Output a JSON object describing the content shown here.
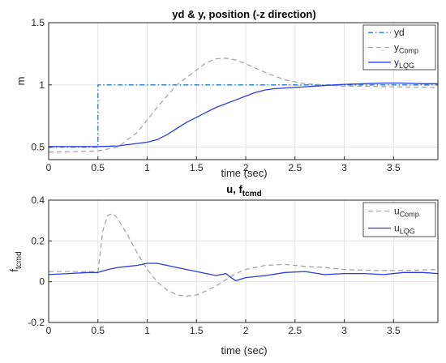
{
  "chart_data": [
    {
      "type": "line",
      "title": "yd & y, position (-z direction)",
      "xlabel": "time (sec)",
      "ylabel": "m",
      "xlim": [
        0,
        3.95
      ],
      "ylim": [
        0.4,
        1.5
      ],
      "xticks": [
        0,
        0.5,
        1,
        1.5,
        2,
        2.5,
        3,
        3.5
      ],
      "xtick_labels": [
        "0",
        "0.5",
        "1",
        "1.5",
        "2",
        "2.5",
        "3",
        "3.5"
      ],
      "yticks": [
        0.5,
        1,
        1.5
      ],
      "ytick_labels": [
        "0.5",
        "1",
        "1.5"
      ],
      "grid": true,
      "legend_position": "top-right",
      "series": [
        {
          "name": "yd",
          "legend_main": "yd",
          "legend_sub": "",
          "color": "#1f77d0",
          "style": "dashdot",
          "x": [
            0,
            0.5,
            0.5,
            3.95
          ],
          "y": [
            0.5,
            0.5,
            1.0,
            1.0
          ]
        },
        {
          "name": "yComp",
          "legend_main": "y",
          "legend_sub": "Comp",
          "color": "#a6a6a6",
          "style": "dashed",
          "x": [
            0,
            0.3,
            0.5,
            0.7,
            0.9,
            1.1,
            1.3,
            1.5,
            1.6,
            1.7,
            1.8,
            1.9,
            2.0,
            2.2,
            2.4,
            2.6,
            2.8,
            3.0,
            3.2,
            3.5,
            3.95
          ],
          "y": [
            0.46,
            0.465,
            0.47,
            0.5,
            0.62,
            0.82,
            1.0,
            1.12,
            1.18,
            1.21,
            1.215,
            1.2,
            1.17,
            1.1,
            1.04,
            1.01,
            1.0,
            0.99,
            0.99,
            0.985,
            0.98
          ]
        },
        {
          "name": "yLQG",
          "legend_main": "y",
          "legend_sub": "LQG",
          "color": "#2b3be0",
          "style": "solid",
          "x": [
            0,
            0.3,
            0.5,
            0.7,
            0.9,
            1.0,
            1.1,
            1.2,
            1.3,
            1.4,
            1.5,
            1.6,
            1.7,
            1.8,
            1.9,
            2.0,
            2.1,
            2.2,
            2.3,
            2.5,
            2.7,
            2.9,
            3.0,
            3.2,
            3.4,
            3.6,
            3.8,
            3.95
          ],
          "y": [
            0.505,
            0.505,
            0.505,
            0.51,
            0.53,
            0.54,
            0.56,
            0.6,
            0.65,
            0.7,
            0.74,
            0.78,
            0.82,
            0.85,
            0.88,
            0.91,
            0.94,
            0.96,
            0.97,
            0.98,
            0.99,
            1.0,
            1.005,
            1.01,
            1.015,
            1.015,
            1.01,
            1.01
          ]
        }
      ]
    },
    {
      "type": "line",
      "title_main": "u, f",
      "title_sub": "tcmd",
      "xlabel": "time (sec)",
      "ylabel_main": "f",
      "ylabel_sub": "tcmd",
      "xlim": [
        0,
        3.95
      ],
      "ylim": [
        -0.2,
        0.4
      ],
      "xticks": [
        0,
        0.5,
        1,
        1.5,
        2,
        2.5,
        3,
        3.5
      ],
      "xtick_labels": [
        "0",
        "0.5",
        "1",
        "1.5",
        "2",
        "2.5",
        "3",
        "3.5"
      ],
      "yticks": [
        -0.2,
        0,
        0.2,
        0.4
      ],
      "ytick_labels": [
        "-0.2",
        "0",
        "0.2",
        "0.4"
      ],
      "grid": true,
      "legend_position": "top-right",
      "series": [
        {
          "name": "uComp",
          "legend_main": "u",
          "legend_sub": "Comp",
          "color": "#a6a6a6",
          "style": "dashed",
          "x": [
            0,
            0.25,
            0.5,
            0.55,
            0.6,
            0.65,
            0.7,
            0.8,
            0.9,
            1.0,
            1.1,
            1.2,
            1.3,
            1.4,
            1.5,
            1.6,
            1.7,
            1.8,
            1.9,
            2.0,
            2.2,
            2.4,
            2.6,
            2.8,
            3.0,
            3.3,
            3.6,
            3.95
          ],
          "y": [
            0.05,
            0.05,
            0.05,
            0.25,
            0.325,
            0.335,
            0.31,
            0.23,
            0.14,
            0.06,
            0.0,
            -0.04,
            -0.065,
            -0.07,
            -0.065,
            -0.045,
            -0.02,
            0.01,
            0.04,
            0.06,
            0.08,
            0.085,
            0.075,
            0.07,
            0.06,
            0.055,
            0.055,
            0.06
          ]
        },
        {
          "name": "uLQG",
          "legend_main": "u",
          "legend_sub": "LQG",
          "color": "#2b3be0",
          "style": "solid",
          "x": [
            0,
            0.2,
            0.4,
            0.5,
            0.6,
            0.7,
            0.8,
            0.9,
            1.0,
            1.1,
            1.2,
            1.3,
            1.4,
            1.5,
            1.6,
            1.7,
            1.8,
            1.85,
            1.9,
            2.0,
            2.2,
            2.4,
            2.6,
            2.8,
            3.0,
            3.2,
            3.4,
            3.6,
            3.8,
            3.95
          ],
          "y": [
            0.035,
            0.04,
            0.045,
            0.045,
            0.06,
            0.07,
            0.075,
            0.08,
            0.09,
            0.09,
            0.08,
            0.07,
            0.06,
            0.05,
            0.04,
            0.03,
            0.04,
            0.02,
            0.005,
            0.02,
            0.03,
            0.045,
            0.05,
            0.035,
            0.04,
            0.04,
            0.035,
            0.045,
            0.045,
            0.04
          ]
        }
      ]
    }
  ]
}
